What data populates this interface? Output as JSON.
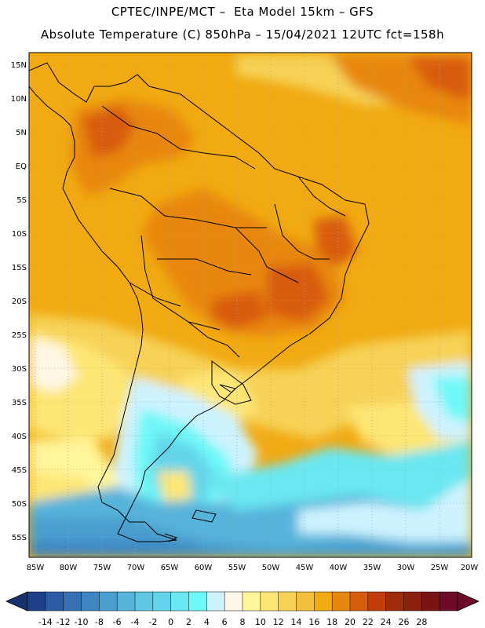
{
  "header": {
    "line1": "CPTEC/INPE/MCT –  Eta Model 15km – GFS",
    "line2": "Absolute Temperature (C) 850hPa – 15/04/2021 12UTC fct=158h"
  },
  "map": {
    "lat_labels": [
      "15N",
      "10N",
      "5N",
      "EQ",
      "5S",
      "10S",
      "15S",
      "20S",
      "25S",
      "30S",
      "35S",
      "40S",
      "45S",
      "50S",
      "55S"
    ],
    "lon_labels": [
      "85W",
      "80W",
      "75W",
      "70W",
      "65W",
      "60W",
      "55W",
      "50W",
      "45W",
      "40W",
      "35W",
      "30W",
      "25W",
      "20W"
    ],
    "grid": "dotted"
  },
  "colorbar": {
    "ticks": [
      "-14",
      "-12",
      "-10",
      "-8",
      "-6",
      "-4",
      "-2",
      "0",
      "2",
      "4",
      "6",
      "8",
      "10",
      "12",
      "14",
      "16",
      "18",
      "20",
      "22",
      "24",
      "26",
      "28"
    ],
    "colors": [
      "#1f3f8a",
      "#2b5aa6",
      "#3570b4",
      "#3d86c1",
      "#4a9dcf",
      "#56b3da",
      "#5fc6e3",
      "#63d5ea",
      "#6ae7f1",
      "#6ff8f8",
      "#cdf3ff",
      "#fff7e5",
      "#fff59a",
      "#fde675",
      "#f7d256",
      "#f2bf3b",
      "#f1aa12",
      "#e8870f",
      "#d85c0d",
      "#c23d0b",
      "#9e2c0a",
      "#8a2010",
      "#7a1414",
      "#6e0c28"
    ]
  }
}
